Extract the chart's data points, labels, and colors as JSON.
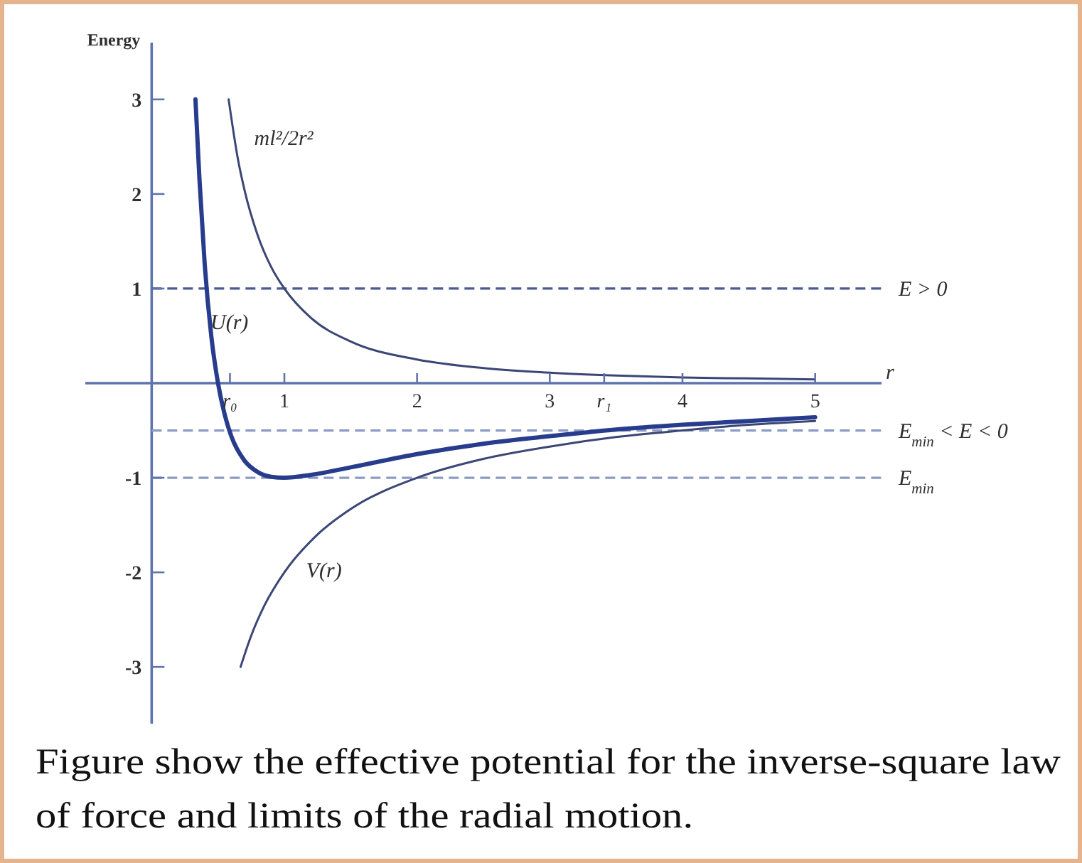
{
  "chart_data": {
    "type": "line",
    "ylabel": "Energy",
    "xlabel": "r",
    "annotations": [
      "Figure show the effective potential for the inverse-square law of force and limits of the radial motion."
    ],
    "xlim": [
      -0.5,
      5.5
    ],
    "ylim": [
      -3.6,
      3.6
    ],
    "xticks": [
      {
        "value": 0.59,
        "label": "r₀"
      },
      1,
      2,
      3,
      {
        "value": 3.41,
        "label": "r₁"
      },
      4,
      5
    ],
    "yticks": [
      -3,
      -2,
      -1,
      1,
      2,
      3
    ],
    "grid": false,
    "legend": false,
    "marker": "none",
    "line_style": "solid",
    "series": [
      {
        "name": "U(r)",
        "color": "#283c8e",
        "x": [
          0.33,
          0.36,
          0.4,
          0.45,
          0.5,
          0.55,
          0.6,
          0.7,
          0.8,
          0.9,
          1,
          1.2,
          1.5,
          2,
          2.5,
          3,
          3.5,
          4,
          4.5,
          5
        ],
        "values": [
          3,
          2.16,
          1.25,
          0.49,
          0,
          -0.33,
          -0.56,
          -0.82,
          -0.94,
          -0.99,
          -1,
          -0.97,
          -0.89,
          -0.75,
          -0.64,
          -0.56,
          -0.49,
          -0.44,
          -0.4,
          -0.36
        ]
      },
      {
        "name": "ml²/2r²",
        "color": "#3b4676",
        "x": [
          0.58,
          0.65,
          0.7,
          0.8,
          0.9,
          1,
          1.2,
          1.5,
          2,
          2.5,
          3,
          3.5,
          4,
          4.5,
          5
        ],
        "values": [
          3,
          2.37,
          2.04,
          1.56,
          1.23,
          1,
          0.69,
          0.44,
          0.25,
          0.16,
          0.11,
          0.08,
          0.06,
          0.05,
          0.04
        ]
      },
      {
        "name": "V(r)",
        "color": "#3b4676",
        "x": [
          0.67,
          0.75,
          0.85,
          1,
          1.25,
          1.5,
          2,
          2.5,
          3,
          3.5,
          4,
          4.5,
          5
        ],
        "values": [
          -3,
          -2.67,
          -2.35,
          -2,
          -1.6,
          -1.33,
          -1,
          -0.8,
          -0.67,
          -0.57,
          -0.5,
          -0.44,
          -0.4
        ]
      }
    ],
    "ref_lines": [
      {
        "axis": "y",
        "value": 1,
        "label": "E > 0",
        "color": "#4a5a94",
        "line_style": "dashed"
      },
      {
        "axis": "y",
        "value": -0.5,
        "label": "E$_{min}$ < E < 0",
        "color": "#8c9bc6",
        "line_style": "dashed"
      },
      {
        "axis": "y",
        "value": -1,
        "label": "E$_{min}$",
        "color": "#8c9bc6",
        "line_style": "dashed"
      }
    ]
  }
}
